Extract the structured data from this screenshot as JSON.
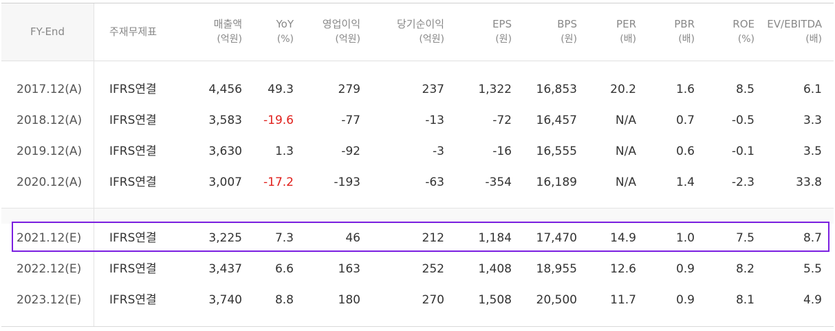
{
  "headers": [
    {
      "label": "FY-End",
      "unit": ""
    },
    {
      "label": "주재무제표",
      "unit": ""
    },
    {
      "label": "매출액",
      "unit": "(억원)"
    },
    {
      "label": "YoY",
      "unit": "(%)"
    },
    {
      "label": "영업이익",
      "unit": "(억원)"
    },
    {
      "label": "당기순이익",
      "unit": "(억원)"
    },
    {
      "label": "EPS",
      "unit": "(원)"
    },
    {
      "label": "BPS",
      "unit": "(원)"
    },
    {
      "label": "PER",
      "unit": "(배)"
    },
    {
      "label": "PBR",
      "unit": "(배)"
    },
    {
      "label": "ROE",
      "unit": "(%)"
    },
    {
      "label": "EV/EBITDA",
      "unit": "(배)"
    }
  ],
  "rows": [
    [
      "2017.12(A)",
      "IFRS연결",
      "4,456",
      "49.3",
      "279",
      "237",
      "1,322",
      "16,853",
      "20.2",
      "1.6",
      "8.5",
      "6.1"
    ],
    [
      "2018.12(A)",
      "IFRS연결",
      "3,583",
      "-19.6",
      "-77",
      "-13",
      "-72",
      "16,457",
      "N/A",
      "0.7",
      "-0.5",
      "3.3"
    ],
    [
      "2019.12(A)",
      "IFRS연결",
      "3,630",
      "1.3",
      "-92",
      "-3",
      "-16",
      "16,555",
      "N/A",
      "0.6",
      "-0.1",
      "3.5"
    ],
    [
      "2020.12(A)",
      "IFRS연결",
      "3,007",
      "-17.2",
      "-193",
      "-63",
      "-354",
      "16,189",
      "N/A",
      "1.4",
      "-2.3",
      "33.8"
    ],
    [
      "2021.12(E)",
      "IFRS연결",
      "3,225",
      "7.3",
      "46",
      "212",
      "1,184",
      "17,470",
      "14.9",
      "1.0",
      "7.5",
      "8.7"
    ],
    [
      "2022.12(E)",
      "IFRS연결",
      "3,437",
      "6.6",
      "163",
      "252",
      "1,408",
      "18,955",
      "12.6",
      "0.9",
      "8.2",
      "5.5"
    ],
    [
      "2023.12(E)",
      "IFRS연결",
      "3,740",
      "8.8",
      "180",
      "270",
      "1,508",
      "20,500",
      "11.7",
      "0.9",
      "8.1",
      "4.9"
    ]
  ],
  "colors": {
    "negative_yoy": "#e0201c",
    "highlight_border": "#7b1fe0",
    "header_text": "#888888",
    "body_text": "#333333"
  },
  "highlighted_row": "2021.12(E)"
}
